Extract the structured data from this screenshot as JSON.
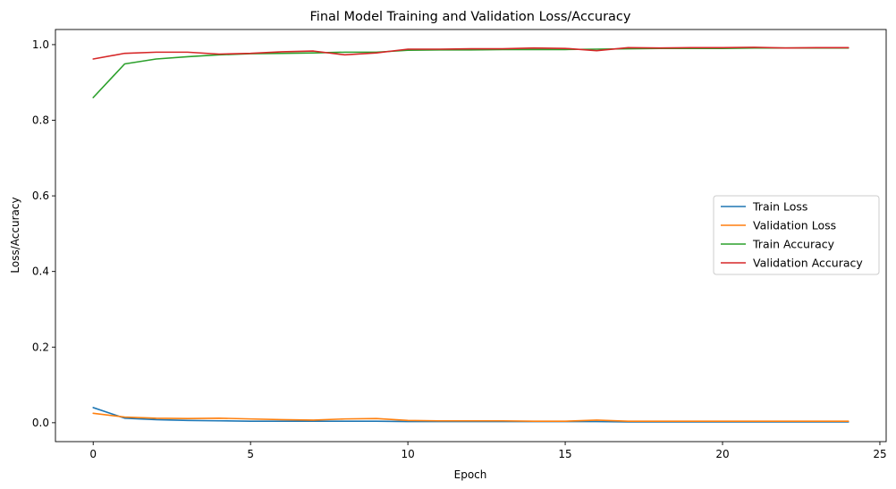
{
  "chart_data": {
    "type": "line",
    "title": "Final Model Training and Validation Loss/Accuracy",
    "xlabel": "Epoch",
    "ylabel": "Loss/Accuracy",
    "xlim": [
      -1.2,
      25.2
    ],
    "ylim": [
      -0.05,
      1.04
    ],
    "xticks": [
      0,
      5,
      10,
      15,
      20,
      25
    ],
    "yticks": [
      0.0,
      0.2,
      0.4,
      0.6,
      0.8,
      1.0
    ],
    "grid": false,
    "legend_position": "center-right",
    "x": [
      0,
      1,
      2,
      3,
      4,
      5,
      6,
      7,
      8,
      9,
      10,
      11,
      12,
      13,
      14,
      15,
      16,
      17,
      18,
      19,
      20,
      21,
      22,
      23,
      24
    ],
    "series": [
      {
        "name": "Train Loss",
        "color": "#1f77b4",
        "values": [
          0.04,
          0.012,
          0.008,
          0.006,
          0.005,
          0.004,
          0.004,
          0.004,
          0.004,
          0.004,
          0.003,
          0.003,
          0.003,
          0.003,
          0.003,
          0.003,
          0.003,
          0.002,
          0.002,
          0.002,
          0.002,
          0.002,
          0.002,
          0.002,
          0.002
        ]
      },
      {
        "name": "Validation Loss",
        "color": "#ff7f0e",
        "values": [
          0.025,
          0.015,
          0.012,
          0.011,
          0.012,
          0.01,
          0.008,
          0.007,
          0.01,
          0.011,
          0.006,
          0.005,
          0.005,
          0.005,
          0.004,
          0.004,
          0.007,
          0.004,
          0.004,
          0.004,
          0.004,
          0.004,
          0.004,
          0.004,
          0.004
        ]
      },
      {
        "name": "Train Accuracy",
        "color": "#2ca02c",
        "values": [
          0.86,
          0.949,
          0.962,
          0.968,
          0.973,
          0.976,
          0.977,
          0.978,
          0.98,
          0.98,
          0.985,
          0.986,
          0.986,
          0.987,
          0.987,
          0.987,
          0.988,
          0.989,
          0.99,
          0.99,
          0.99,
          0.991,
          0.991,
          0.991,
          0.991
        ]
      },
      {
        "name": "Validation Accuracy",
        "color": "#d62728",
        "values": [
          0.962,
          0.977,
          0.98,
          0.98,
          0.975,
          0.977,
          0.981,
          0.983,
          0.973,
          0.978,
          0.988,
          0.988,
          0.989,
          0.989,
          0.991,
          0.99,
          0.984,
          0.992,
          0.991,
          0.992,
          0.992,
          0.993,
          0.991,
          0.992,
          0.992
        ]
      }
    ]
  }
}
